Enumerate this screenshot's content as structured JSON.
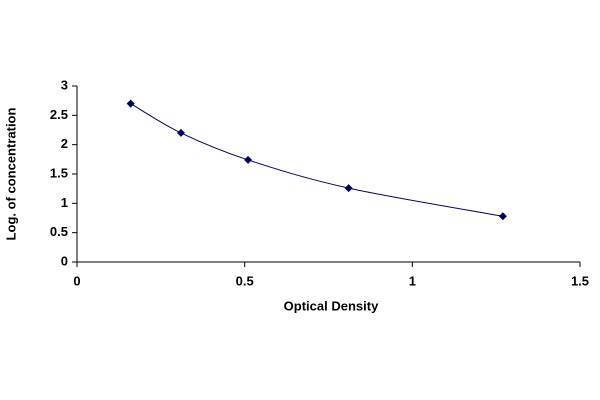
{
  "chart_data": {
    "type": "scatter",
    "x_label": "Optical Density",
    "y_label": "Log. of concentration",
    "x": [
      0.16,
      0.31,
      0.51,
      0.81,
      1.27
    ],
    "series": [
      {
        "color": "#000066",
        "values": [
          2.7,
          2.2,
          1.74,
          1.26,
          0.78
        ]
      }
    ],
    "line": true,
    "smooth": true,
    "marker": "diamond",
    "xlim": [
      0,
      1.5
    ],
    "xticks": [
      0,
      0.5,
      1,
      1.5
    ],
    "ylim": [
      0,
      3
    ],
    "yticks": [
      0,
      0.5,
      1,
      1.5,
      2,
      2.5,
      3
    ],
    "grid": false
  }
}
